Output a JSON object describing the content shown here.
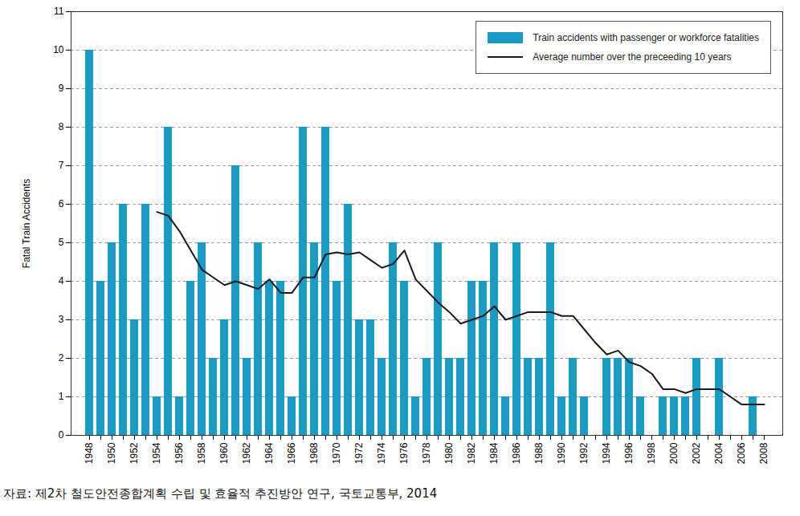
{
  "chart_data": {
    "type": "bar",
    "y_label": "Fatal Train Accidents",
    "caption": "자료: 제2차 철도안전종합계획 수립 및 효율적 추진방안 연구, 국토교통부, 2014",
    "categories": [
      "1948",
      null,
      "1950",
      null,
      "1952",
      null,
      "1954",
      null,
      "1956",
      null,
      "1958",
      null,
      "1960",
      null,
      "1962",
      null,
      "1964",
      null,
      "1966",
      null,
      "1968",
      null,
      "1970",
      null,
      "1972",
      null,
      "1974",
      null,
      "1976",
      null,
      "1978",
      null,
      "1980",
      null,
      "1982",
      null,
      "1984",
      null,
      "1986",
      null,
      "1988",
      null,
      "1990",
      null,
      "1992",
      null,
      "1994",
      null,
      "1996",
      null,
      "1998",
      null,
      "2000",
      null,
      "2002",
      null,
      "2004",
      null,
      "2006",
      null,
      "2008"
    ],
    "series": [
      {
        "name": "Train accidents with passenger or workforce fatalities",
        "type": "bar",
        "color": "#1a9bc6",
        "values": [
          10,
          4,
          5,
          6,
          3,
          6,
          1,
          8,
          1,
          4,
          5,
          2,
          3,
          7,
          2,
          5,
          4,
          4,
          1,
          8,
          5,
          8,
          4,
          6,
          3,
          3,
          2,
          5,
          4,
          1,
          2,
          5,
          2,
          2,
          4,
          4,
          5,
          1,
          5,
          2,
          2,
          5,
          1,
          2,
          1,
          0,
          2,
          2,
          2,
          1,
          0,
          1,
          1,
          1,
          2,
          0,
          2,
          0,
          0,
          1,
          0
        ]
      },
      {
        "name": "Average number over the preceeding 10 years",
        "type": "line",
        "color": "#1a1a1a",
        "values": [
          null,
          null,
          null,
          null,
          null,
          null,
          5.8,
          5.7,
          5.3,
          4.8,
          4.3,
          4.1,
          3.9,
          4.0,
          3.9,
          3.8,
          4.05,
          3.7,
          3.7,
          4.1,
          4.1,
          4.7,
          4.75,
          4.7,
          4.75,
          4.55,
          4.35,
          4.45,
          4.8,
          4.05,
          3.75,
          3.45,
          3.2,
          2.9,
          3.0,
          3.1,
          3.35,
          3.0,
          3.1,
          3.2,
          3.2,
          3.2,
          3.1,
          3.1,
          2.75,
          2.4,
          2.1,
          2.2,
          1.9,
          1.8,
          1.6,
          1.2,
          1.2,
          1.1,
          1.2,
          1.2,
          1.2,
          1.0,
          0.8,
          0.8,
          0.8
        ]
      }
    ],
    "ylim": [
      0,
      11
    ],
    "yticks": [
      0,
      1,
      2,
      3,
      4,
      5,
      6,
      7,
      8,
      9,
      10,
      11
    ],
    "grid": true,
    "legend": "top-right"
  }
}
